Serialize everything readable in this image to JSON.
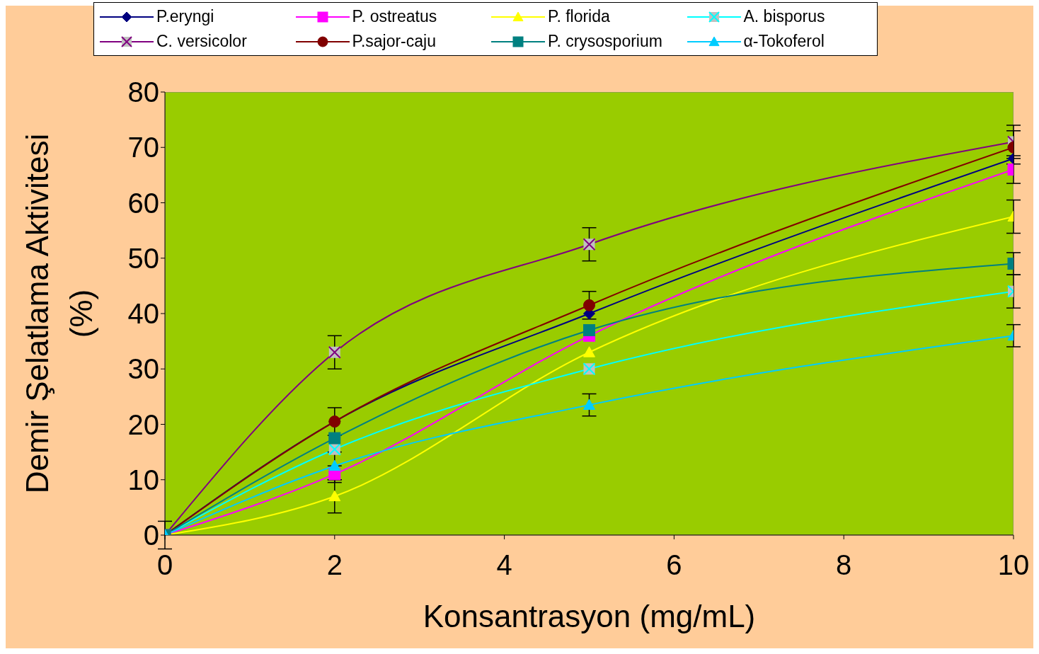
{
  "chart_data": {
    "type": "line",
    "xlabel": "Konsantrasyon (mg/mL)",
    "ylabel": "Demir Şelatlama Aktivitesi (%)",
    "x": [
      0,
      2,
      5,
      10
    ],
    "series": [
      {
        "name": "P.eryngi",
        "color": "#000080",
        "marker": "diamond",
        "values": [
          0,
          20.5,
          40,
          68
        ],
        "errors": [
          2.5,
          null,
          null,
          null
        ]
      },
      {
        "name": "P. ostreatus",
        "color": "#ff00ff",
        "marker": "square",
        "values": [
          0,
          11,
          36,
          66
        ],
        "errors": [
          null,
          1.5,
          null,
          2.5
        ]
      },
      {
        "name": "P. florida",
        "color": "#ffff00",
        "marker": "triangle",
        "values": [
          0,
          7,
          33,
          57.5
        ],
        "errors": [
          null,
          3,
          null,
          3
        ]
      },
      {
        "name": "A. bisporus",
        "color": "#00ffff",
        "marker": "cross",
        "values": [
          0,
          15.5,
          30,
          44
        ],
        "errors": [
          null,
          null,
          null,
          3
        ]
      },
      {
        "name": "C. versicolor",
        "color": "#800080",
        "marker": "cross",
        "values": [
          0,
          33,
          52.5,
          71
        ],
        "errors": [
          null,
          3,
          3,
          3
        ]
      },
      {
        "name": "P.sajor-caju",
        "color": "#800000",
        "marker": "circle",
        "values": [
          0,
          20.5,
          41.5,
          70
        ],
        "errors": [
          null,
          2.5,
          2.5,
          3
        ]
      },
      {
        "name": "P. crysosporium",
        "color": "#008080",
        "marker": "square",
        "values": [
          0,
          17.5,
          37,
          49
        ],
        "errors": [
          null,
          null,
          null,
          2
        ]
      },
      {
        "name": "α-Tokoferol",
        "color": "#00ccff",
        "marker": "triangle",
        "values": [
          0,
          12.5,
          23.5,
          36
        ],
        "errors": [
          null,
          2.5,
          2,
          2
        ]
      }
    ],
    "xlim": [
      0,
      10
    ],
    "xticks": [
      0,
      2,
      4,
      6,
      8,
      10
    ],
    "ylim": [
      0,
      80
    ],
    "yticks": [
      0,
      10,
      20,
      30,
      40,
      50,
      60,
      70,
      80
    ],
    "legend": "top",
    "line_style": "solid"
  }
}
